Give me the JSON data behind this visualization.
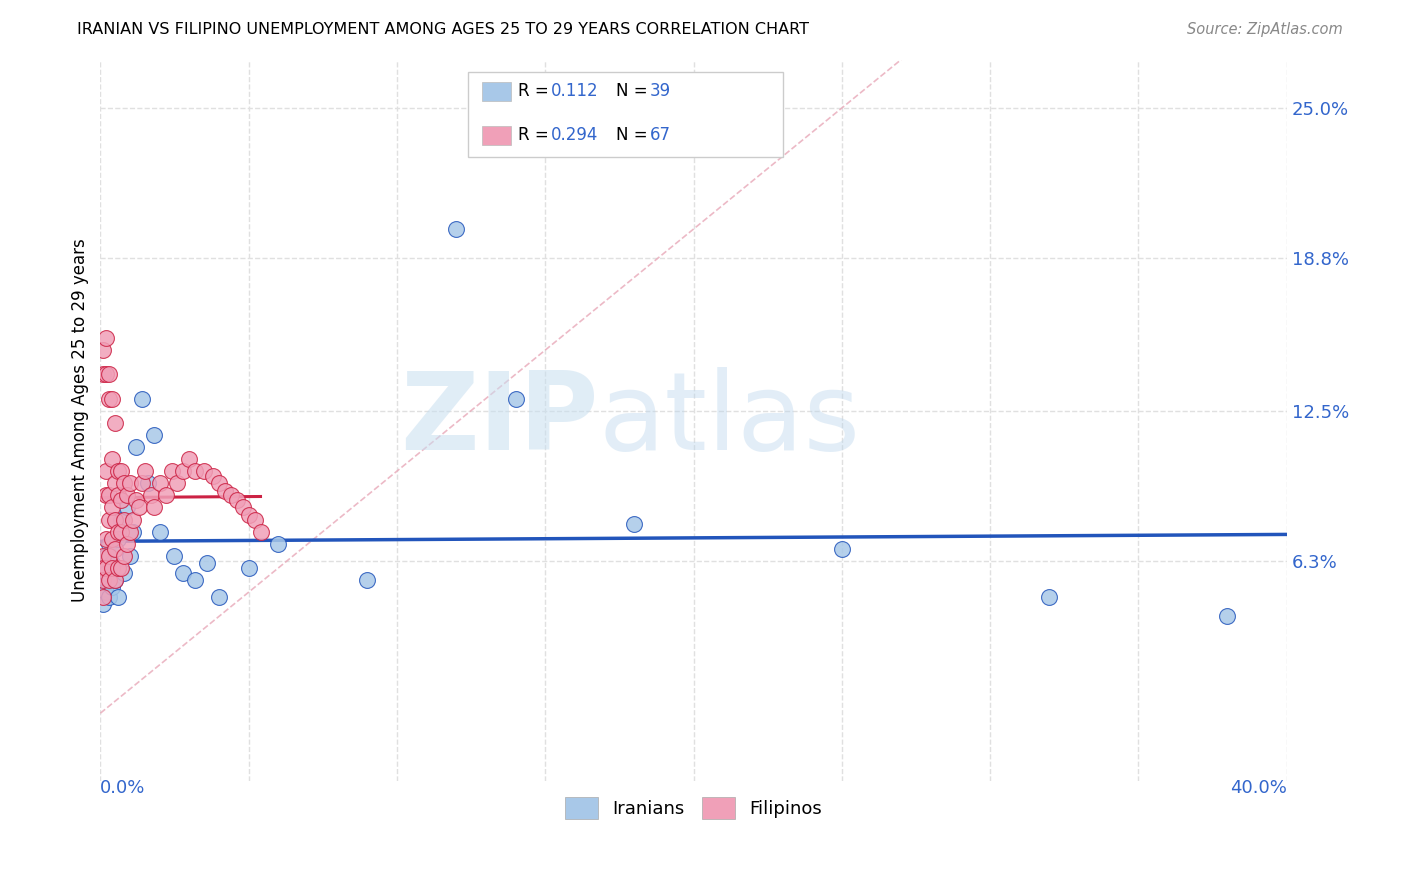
{
  "title": "IRANIAN VS FILIPINO UNEMPLOYMENT AMONG AGES 25 TO 29 YEARS CORRELATION CHART",
  "source": "Source: ZipAtlas.com",
  "ylabel": "Unemployment Among Ages 25 to 29 years",
  "xlim": [
    0.0,
    0.4
  ],
  "ylim": [
    -0.028,
    0.27
  ],
  "right_yticks": [
    0.063,
    0.125,
    0.188,
    0.25
  ],
  "right_yticklabels": [
    "6.3%",
    "12.5%",
    "18.8%",
    "25.0%"
  ],
  "iranians_color": "#a8c8e8",
  "filipinos_color": "#f0a0b8",
  "trend_iranian_color": "#2255bb",
  "trend_filipino_color": "#cc2244",
  "diag_color": "#e8a8b8",
  "blue_label_color": "#3366cc",
  "grid_color": "#e0e0e0",
  "xtick_positions": [
    0.0,
    0.05,
    0.1,
    0.15,
    0.2,
    0.25,
    0.3,
    0.35,
    0.4
  ],
  "iranians_x": [
    0.001,
    0.001,
    0.001,
    0.001,
    0.002,
    0.002,
    0.002,
    0.003,
    0.003,
    0.004,
    0.004,
    0.005,
    0.005,
    0.006,
    0.006,
    0.007,
    0.008,
    0.009,
    0.01,
    0.011,
    0.012,
    0.014,
    0.016,
    0.018,
    0.02,
    0.025,
    0.028,
    0.032,
    0.036,
    0.04,
    0.05,
    0.06,
    0.09,
    0.12,
    0.14,
    0.18,
    0.25,
    0.32,
    0.38
  ],
  "iranians_y": [
    0.06,
    0.055,
    0.05,
    0.045,
    0.065,
    0.058,
    0.05,
    0.07,
    0.048,
    0.062,
    0.052,
    0.068,
    0.055,
    0.072,
    0.048,
    0.08,
    0.058,
    0.085,
    0.065,
    0.075,
    0.11,
    0.13,
    0.095,
    0.115,
    0.075,
    0.065,
    0.058,
    0.055,
    0.062,
    0.048,
    0.06,
    0.07,
    0.055,
    0.2,
    0.13,
    0.078,
    0.068,
    0.048,
    0.04
  ],
  "filipinos_x": [
    0.001,
    0.001,
    0.001,
    0.001,
    0.001,
    0.001,
    0.002,
    0.002,
    0.002,
    0.002,
    0.002,
    0.002,
    0.003,
    0.003,
    0.003,
    0.003,
    0.003,
    0.003,
    0.004,
    0.004,
    0.004,
    0.004,
    0.004,
    0.005,
    0.005,
    0.005,
    0.005,
    0.005,
    0.006,
    0.006,
    0.006,
    0.006,
    0.007,
    0.007,
    0.007,
    0.007,
    0.008,
    0.008,
    0.008,
    0.009,
    0.009,
    0.01,
    0.01,
    0.011,
    0.012,
    0.013,
    0.014,
    0.015,
    0.017,
    0.018,
    0.02,
    0.022,
    0.024,
    0.026,
    0.028,
    0.03,
    0.032,
    0.035,
    0.038,
    0.04,
    0.042,
    0.044,
    0.046,
    0.048,
    0.05,
    0.052,
    0.054
  ],
  "filipinos_y": [
    0.15,
    0.14,
    0.065,
    0.06,
    0.055,
    0.048,
    0.155,
    0.14,
    0.1,
    0.09,
    0.072,
    0.06,
    0.14,
    0.13,
    0.09,
    0.08,
    0.065,
    0.055,
    0.13,
    0.105,
    0.085,
    0.072,
    0.06,
    0.12,
    0.095,
    0.08,
    0.068,
    0.055,
    0.1,
    0.09,
    0.075,
    0.06,
    0.1,
    0.088,
    0.075,
    0.06,
    0.095,
    0.08,
    0.065,
    0.09,
    0.07,
    0.095,
    0.075,
    0.08,
    0.088,
    0.085,
    0.095,
    0.1,
    0.09,
    0.085,
    0.095,
    0.09,
    0.1,
    0.095,
    0.1,
    0.105,
    0.1,
    0.1,
    0.098,
    0.095,
    0.092,
    0.09,
    0.088,
    0.085,
    0.082,
    0.08,
    0.075
  ]
}
